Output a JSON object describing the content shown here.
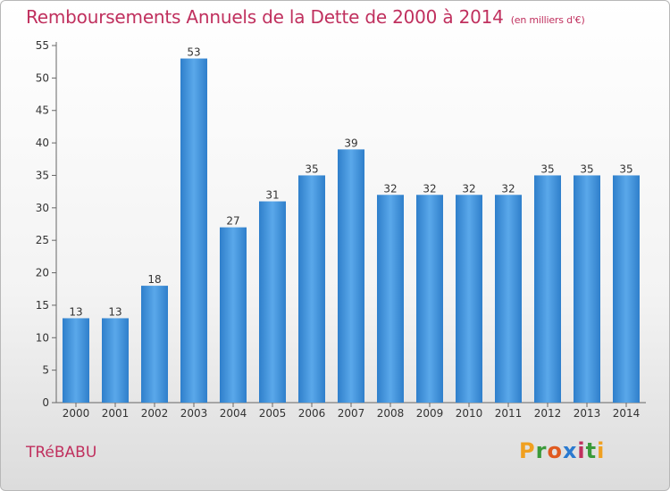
{
  "title": "Remboursements Annuels de la Dette de 2000 à 2014",
  "subtitle": "(en milliers d'€)",
  "commune": "TRéBABU",
  "logo": {
    "letters": [
      "P",
      "r",
      "o",
      "x",
      "i",
      "t",
      "i"
    ],
    "colors": [
      "#f0a020",
      "#3a9a3a",
      "#e05a20",
      "#2a7ad0",
      "#c0305e",
      "#3a9a3a",
      "#f0a020"
    ]
  },
  "colors": {
    "bar": "#3f8fd8",
    "title": "#c0305e"
  },
  "chart_data": {
    "type": "bar",
    "categories": [
      "2000",
      "2001",
      "2002",
      "2003",
      "2004",
      "2005",
      "2006",
      "2007",
      "2008",
      "2009",
      "2010",
      "2011",
      "2012",
      "2013",
      "2014"
    ],
    "values": [
      13,
      13,
      18,
      53,
      27,
      31,
      35,
      39,
      32,
      32,
      32,
      32,
      35,
      35,
      35
    ],
    "title": "Remboursements Annuels de la Dette de 2000 à 2014",
    "xlabel": "",
    "ylabel": "",
    "ylim": [
      0,
      55
    ],
    "yticks": [
      0,
      5,
      10,
      15,
      20,
      25,
      30,
      35,
      40,
      45,
      50,
      55
    ],
    "grid": false
  }
}
